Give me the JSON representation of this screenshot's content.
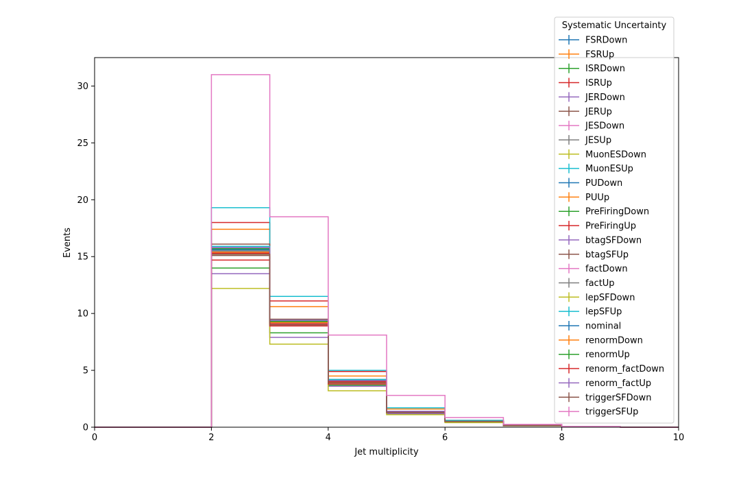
{
  "chart_data": {
    "type": "step-histogram",
    "xlabel": "Jet multiplicity",
    "ylabel": "Events",
    "xlim": [
      0,
      10
    ],
    "ylim": [
      0,
      32.5
    ],
    "xticks": [
      "0",
      "2",
      "4",
      "6",
      "8",
      "10"
    ],
    "yticks": [
      "0",
      "5",
      "10",
      "15",
      "20",
      "25",
      "30"
    ],
    "bin_edges": [
      0,
      1,
      2,
      3,
      4,
      5,
      6,
      7,
      8,
      9,
      10
    ],
    "grid": false,
    "legend": {
      "title": "Systematic Uncertainty",
      "placement": "top-right"
    },
    "series": [
      {
        "name": "FSRDown",
        "color": "#1f77b4",
        "values": [
          0,
          0,
          15.6,
          9.3,
          4.1,
          1.3,
          0.5,
          0.15,
          0.03,
          0
        ]
      },
      {
        "name": "FSRUp",
        "color": "#ff7f0e",
        "values": [
          0,
          0,
          17.4,
          10.6,
          4.5,
          1.6,
          0.55,
          0.18,
          0.04,
          0
        ]
      },
      {
        "name": "ISRDown",
        "color": "#2ca02c",
        "values": [
          0,
          0,
          14.0,
          8.3,
          3.7,
          1.2,
          0.45,
          0.13,
          0.03,
          0
        ]
      },
      {
        "name": "ISRUp",
        "color": "#d62728",
        "values": [
          0,
          0,
          18.0,
          11.1,
          4.9,
          1.7,
          0.6,
          0.2,
          0.05,
          0
        ]
      },
      {
        "name": "JERDown",
        "color": "#9467bd",
        "values": [
          0,
          0,
          13.5,
          7.9,
          3.6,
          1.2,
          0.45,
          0.13,
          0.03,
          0
        ]
      },
      {
        "name": "JERUp",
        "color": "#8c564b",
        "values": [
          0,
          0,
          15.1,
          9.0,
          3.9,
          1.3,
          0.5,
          0.15,
          0.03,
          0
        ]
      },
      {
        "name": "JESDown",
        "color": "#e377c2",
        "values": [
          0,
          0,
          15.4,
          9.2,
          4.0,
          1.3,
          0.5,
          0.15,
          0.03,
          0
        ]
      },
      {
        "name": "JESUp",
        "color": "#7f7f7f",
        "values": [
          0,
          0,
          15.9,
          9.4,
          4.2,
          1.4,
          0.5,
          0.15,
          0.04,
          0
        ]
      },
      {
        "name": "MuonESDown",
        "color": "#bcbd22",
        "values": [
          0,
          0,
          12.2,
          7.3,
          3.2,
          1.1,
          0.4,
          0.12,
          0.03,
          0
        ]
      },
      {
        "name": "MuonESUp",
        "color": "#17becf",
        "values": [
          0,
          0,
          19.3,
          11.5,
          5.0,
          1.7,
          0.6,
          0.2,
          0.05,
          0
        ]
      },
      {
        "name": "PUDown",
        "color": "#1f77b4",
        "values": [
          0,
          0,
          15.5,
          9.2,
          4.0,
          1.3,
          0.5,
          0.15,
          0.03,
          0
        ]
      },
      {
        "name": "PUUp",
        "color": "#ff7f0e",
        "values": [
          0,
          0,
          15.3,
          9.0,
          4.0,
          1.3,
          0.5,
          0.15,
          0.03,
          0
        ]
      },
      {
        "name": "PreFiringDown",
        "color": "#2ca02c",
        "values": [
          0,
          0,
          15.7,
          9.3,
          4.1,
          1.3,
          0.5,
          0.15,
          0.03,
          0
        ]
      },
      {
        "name": "PreFiringUp",
        "color": "#d62728",
        "values": [
          0,
          0,
          14.7,
          8.9,
          3.8,
          1.3,
          0.5,
          0.14,
          0.03,
          0
        ]
      },
      {
        "name": "btagSFDown",
        "color": "#9467bd",
        "values": [
          0,
          0,
          15.8,
          9.4,
          4.1,
          1.4,
          0.5,
          0.15,
          0.04,
          0
        ]
      },
      {
        "name": "btagSFUp",
        "color": "#8c564b",
        "values": [
          0,
          0,
          16.1,
          9.5,
          4.2,
          1.4,
          0.5,
          0.15,
          0.04,
          0
        ]
      },
      {
        "name": "factDown",
        "color": "#e377c2",
        "values": [
          0,
          0,
          15.6,
          9.3,
          4.1,
          1.3,
          0.5,
          0.15,
          0.03,
          0
        ]
      },
      {
        "name": "factUp",
        "color": "#7f7f7f",
        "values": [
          0,
          0,
          15.5,
          9.2,
          4.0,
          1.3,
          0.5,
          0.15,
          0.03,
          0
        ]
      },
      {
        "name": "lepSFDown",
        "color": "#bcbd22",
        "values": [
          0,
          0,
          15.2,
          9.0,
          3.9,
          1.3,
          0.5,
          0.15,
          0.03,
          0
        ]
      },
      {
        "name": "lepSFUp",
        "color": "#17becf",
        "values": [
          0,
          0,
          15.9,
          9.4,
          4.2,
          1.4,
          0.5,
          0.15,
          0.04,
          0
        ]
      },
      {
        "name": "nominal",
        "color": "#1f77b4",
        "values": [
          0,
          0,
          15.6,
          9.3,
          4.1,
          1.3,
          0.5,
          0.15,
          0.03,
          0
        ]
      },
      {
        "name": "renormDown",
        "color": "#ff7f0e",
        "values": [
          0,
          0,
          15.4,
          9.2,
          4.0,
          1.3,
          0.5,
          0.15,
          0.03,
          0
        ]
      },
      {
        "name": "renormUp",
        "color": "#2ca02c",
        "values": [
          0,
          0,
          15.7,
          9.3,
          4.1,
          1.3,
          0.5,
          0.15,
          0.03,
          0
        ]
      },
      {
        "name": "renorm_factDown",
        "color": "#d62728",
        "values": [
          0,
          0,
          15.3,
          9.1,
          4.0,
          1.3,
          0.5,
          0.15,
          0.03,
          0
        ]
      },
      {
        "name": "renorm_factUp",
        "color": "#9467bd",
        "values": [
          0,
          0,
          15.8,
          9.4,
          4.1,
          1.4,
          0.5,
          0.15,
          0.04,
          0
        ]
      },
      {
        "name": "triggerSFDown",
        "color": "#8c564b",
        "values": [
          0,
          0,
          15.2,
          9.0,
          3.9,
          1.3,
          0.5,
          0.15,
          0.03,
          0
        ]
      },
      {
        "name": "triggerSFUp",
        "color": "#e377c2",
        "values": [
          0,
          0,
          31.0,
          18.5,
          8.1,
          2.8,
          0.85,
          0.25,
          0.06,
          0
        ]
      }
    ]
  }
}
